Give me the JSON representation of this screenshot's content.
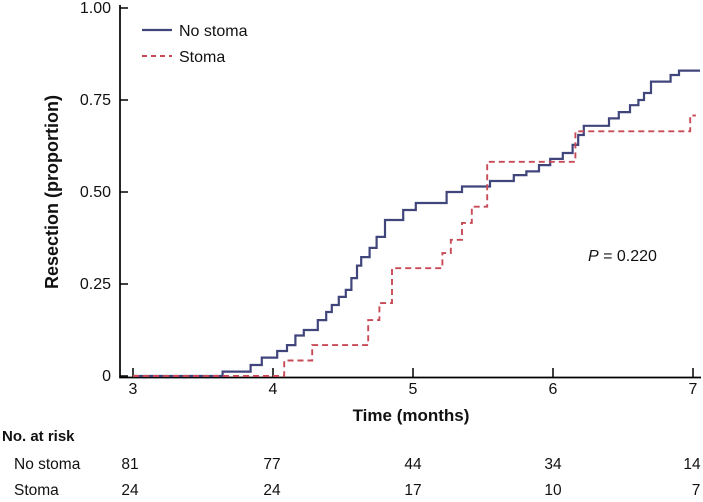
{
  "chart_data": {
    "type": "line",
    "subtype": "kaplan-meier-step",
    "title": "",
    "xlabel": "Time (months)",
    "ylabel": "Resection (proportion)",
    "xlim": [
      3,
      7
    ],
    "ylim": [
      0,
      1.0
    ],
    "x_ticks": [
      "3",
      "4",
      "5",
      "6",
      "7"
    ],
    "y_ticks": [
      "0",
      "0.25",
      "0.50",
      "0.75",
      "1.00"
    ],
    "grid": false,
    "legend_position": "top-left-inside",
    "annotation": {
      "p_label": "P",
      "p_rest": " = 0.220"
    },
    "series": [
      {
        "name": "No stoma",
        "color": "#40457c",
        "style": "solid",
        "end_time": 7.05,
        "step_points": [
          [
            3.0,
            0
          ],
          [
            3.64,
            0.012
          ],
          [
            3.84,
            0.03
          ],
          [
            3.92,
            0.05
          ],
          [
            4.03,
            0.068
          ],
          [
            4.1,
            0.084
          ],
          [
            4.16,
            0.11
          ],
          [
            4.22,
            0.125
          ],
          [
            4.32,
            0.152
          ],
          [
            4.38,
            0.174
          ],
          [
            4.42,
            0.193
          ],
          [
            4.47,
            0.215
          ],
          [
            4.52,
            0.234
          ],
          [
            4.56,
            0.266
          ],
          [
            4.6,
            0.3
          ],
          [
            4.63,
            0.323
          ],
          [
            4.69,
            0.348
          ],
          [
            4.74,
            0.378
          ],
          [
            4.8,
            0.424
          ],
          [
            4.93,
            0.451
          ],
          [
            5.02,
            0.47
          ],
          [
            5.24,
            0.5
          ],
          [
            5.35,
            0.515
          ],
          [
            5.55,
            0.53
          ],
          [
            5.72,
            0.546
          ],
          [
            5.81,
            0.556
          ],
          [
            5.9,
            0.573
          ],
          [
            5.98,
            0.59
          ],
          [
            6.07,
            0.606
          ],
          [
            6.14,
            0.628
          ],
          [
            6.18,
            0.655
          ],
          [
            6.22,
            0.68
          ],
          [
            6.4,
            0.7
          ],
          [
            6.47,
            0.717
          ],
          [
            6.55,
            0.736
          ],
          [
            6.61,
            0.75
          ],
          [
            6.65,
            0.769
          ],
          [
            6.7,
            0.8
          ],
          [
            6.84,
            0.818
          ],
          [
            6.9,
            0.83
          ]
        ]
      },
      {
        "name": "Stoma",
        "color": "#c84a57",
        "style": "dashed",
        "end_time": 7.02,
        "step_points": [
          [
            3.0,
            0
          ],
          [
            4.08,
            0.042
          ],
          [
            4.28,
            0.084
          ],
          [
            4.68,
            0.152
          ],
          [
            4.76,
            0.198
          ],
          [
            4.85,
            0.293
          ],
          [
            5.21,
            0.334
          ],
          [
            5.27,
            0.37
          ],
          [
            5.35,
            0.416
          ],
          [
            5.42,
            0.46
          ],
          [
            5.53,
            0.582
          ],
          [
            6.16,
            0.665
          ],
          [
            6.98,
            0.708
          ]
        ]
      }
    ]
  },
  "risk_table": {
    "title": "No. at risk",
    "time_points": [
      "3",
      "4",
      "5",
      "6",
      "7"
    ],
    "rows": [
      {
        "label": "No stoma",
        "values": [
          "81",
          "77",
          "44",
          "34",
          "14"
        ]
      },
      {
        "label": "Stoma",
        "values": [
          "24",
          "24",
          "17",
          "10",
          "7"
        ]
      }
    ]
  }
}
